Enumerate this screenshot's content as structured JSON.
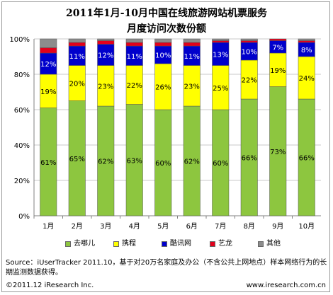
{
  "title_line1": "2011年1月-10月中国在线旅游网站机票服务",
  "title_line2": "月度访问次数份额",
  "chart_data": {
    "type": "bar",
    "stacked": true,
    "categories": [
      "1月",
      "2月",
      "3月",
      "4月",
      "5月",
      "6月",
      "7月",
      "8月",
      "9月",
      "10月"
    ],
    "y_ticks": [
      "0%",
      "20%",
      "40%",
      "60%",
      "80%",
      "100%"
    ],
    "ylim": [
      0,
      100
    ],
    "grid": true,
    "legend_position": "bottom",
    "series": [
      {
        "name": "去哪儿",
        "color": "#8dc63f",
        "values": [
          61,
          65,
          62,
          63,
          60,
          62,
          60,
          66,
          73,
          66
        ],
        "labels": [
          "61%",
          "65%",
          "62%",
          "63%",
          "60%",
          "62%",
          "60%",
          "66%",
          "73%",
          "66%"
        ]
      },
      {
        "name": "携程",
        "color": "#ffff00",
        "values": [
          19,
          20,
          23,
          22,
          26,
          23,
          25,
          22,
          19,
          24
        ],
        "labels": [
          "19%",
          "20%",
          "23%",
          "22%",
          "26%",
          "23%",
          "25%",
          "22%",
          "19%",
          "24%"
        ]
      },
      {
        "name": "酷讯网",
        "color": "#0000cc",
        "values": [
          12,
          11,
          12,
          11,
          10,
          11,
          13,
          10,
          7,
          8
        ],
        "labels": [
          "12%",
          "11%",
          "12%",
          "11%",
          "10%",
          "11%",
          "13%",
          "10%",
          "7%",
          "8%"
        ]
      },
      {
        "name": "艺龙",
        "color": "#e3001b",
        "values": [
          3,
          2,
          2,
          2,
          2,
          2,
          1,
          1,
          1,
          1
        ],
        "labels": [
          "",
          "",
          "",
          "",
          "",
          "",
          "",
          "",
          "",
          ""
        ]
      },
      {
        "name": "其他",
        "color": "#8c8c8c",
        "values": [
          5,
          2,
          1,
          2,
          2,
          2,
          1,
          1,
          0,
          1
        ],
        "labels": [
          "",
          "",
          "",
          "",
          "",
          "",
          "",
          "",
          "",
          ""
        ]
      }
    ]
  },
  "note": "Source：iUserTracker 2011.10，基于对20万名家庭及办公（不含公共上网地点）样本网络行为的长期监测数据获得。",
  "footer_left": "©2011.12 iResearch Inc.",
  "footer_right": "www.iresearch.com.cn"
}
